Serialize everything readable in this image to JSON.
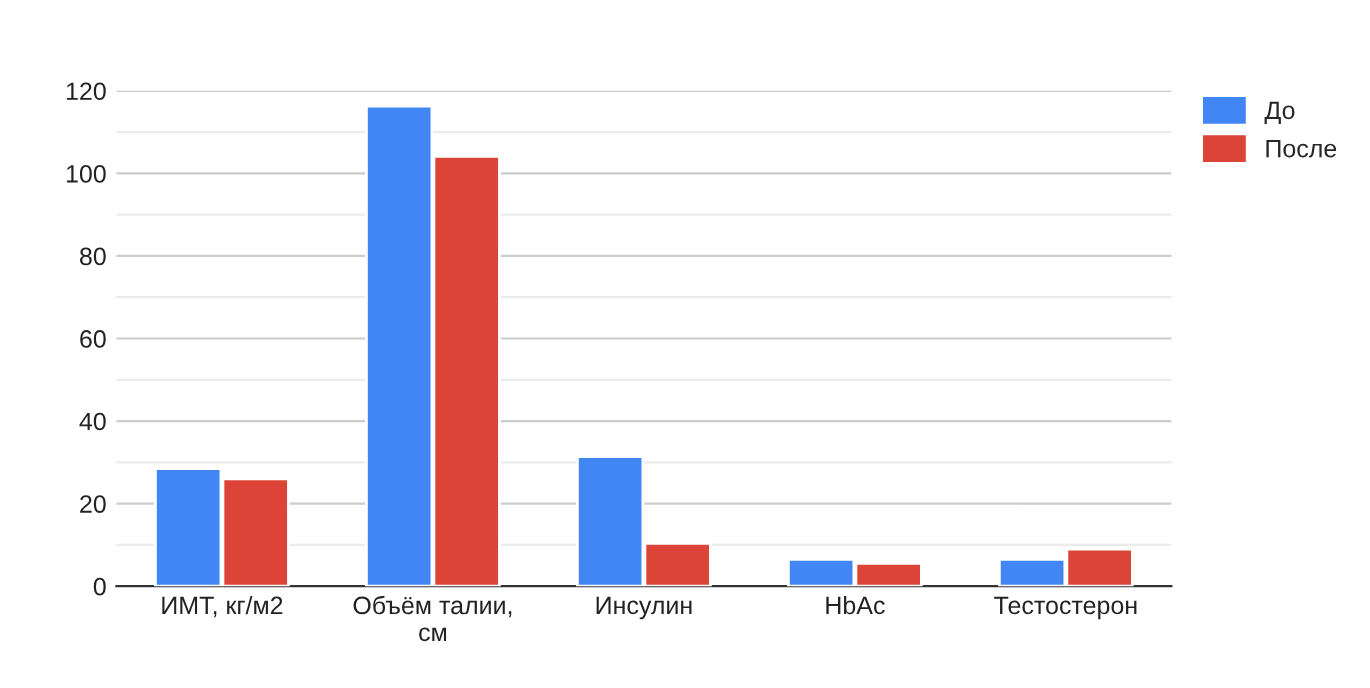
{
  "chart_data": {
    "type": "bar",
    "categories": [
      "ИМТ, кг/м2",
      "Объём талии,\nсм",
      "Инсулин",
      "HbAc",
      "Тестостерон"
    ],
    "series": [
      {
        "name": "До",
        "color": "#4285f4",
        "values": [
          28.5,
          116.3,
          31.4,
          6.5,
          6.5
        ]
      },
      {
        "name": "После",
        "color": "#db4437",
        "values": [
          26.0,
          104.1,
          10.4,
          5.5,
          9.0
        ]
      }
    ],
    "ylim": [
      0,
      120
    ],
    "yticks": [
      0,
      {
        "value": 10,
        "label": null
      },
      20,
      {
        "value": 30,
        "label": null
      },
      40,
      {
        "value": 50,
        "label": null
      },
      60,
      {
        "value": 70,
        "label": null
      },
      80,
      {
        "value": 90,
        "label": null
      },
      100,
      {
        "value": 110,
        "label": null
      },
      120
    ],
    "grid": "y",
    "legend": "top right"
  }
}
